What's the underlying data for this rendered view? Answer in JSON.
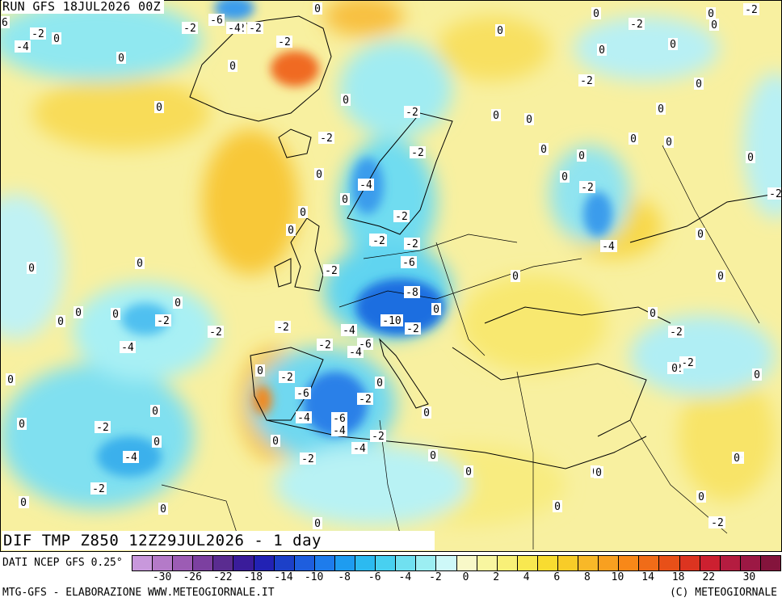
{
  "header": {
    "run": "RUN GFS 18JUL2026 00Z"
  },
  "map_title": "DIF TMP Z850 12Z29JUL2026 - 1 day",
  "footer": {
    "source": "DATI NCEP GFS 0.25°",
    "elaboration": "MTG-GFS - ELABORAZIONE WWW.METEOGIORNALE.IT",
    "credit": "(C) METEOGIORNALE"
  },
  "legend": {
    "colors": [
      "#c898dc",
      "#b47ac8",
      "#9c5cb4",
      "#7c40a0",
      "#5a2c90",
      "#3a1c9a",
      "#2222b4",
      "#1c40c8",
      "#1e5ede",
      "#1e7cec",
      "#1e9cf0",
      "#2cbaf0",
      "#48d0f0",
      "#70e0f0",
      "#9ceef2",
      "#cef8f8",
      "#f8f8c8",
      "#f8f6a0",
      "#f8f078",
      "#f8e850",
      "#f8dc30",
      "#f8cc28",
      "#f8b828",
      "#f8a020",
      "#f88818",
      "#f06c18",
      "#e85018",
      "#dc3420",
      "#cc2030",
      "#b41c40",
      "#9c1844",
      "#84143c"
    ],
    "ticks": [
      "-30",
      "-26",
      "-22",
      "-18",
      "-14",
      "-10",
      "-8",
      "-6",
      "-4",
      "-2",
      "0",
      "2",
      "4",
      "6",
      "8",
      "10",
      "14",
      "18",
      "22",
      "30"
    ]
  },
  "contour_labels": [
    {
      "text": "-6"
    },
    {
      "text": "-2"
    },
    {
      "text": "-2"
    },
    {
      "text": "-6"
    },
    {
      "text": "-4"
    },
    {
      "text": "-2"
    },
    {
      "text": "0"
    },
    {
      "text": "-2"
    },
    {
      "text": "0"
    },
    {
      "text": "0"
    },
    {
      "text": "-2"
    },
    {
      "text": "0"
    },
    {
      "text": "-4"
    },
    {
      "text": "0"
    },
    {
      "text": "-2"
    },
    {
      "text": "-2"
    },
    {
      "text": "0"
    },
    {
      "text": "-2"
    },
    {
      "text": "0"
    },
    {
      "text": "-2"
    },
    {
      "text": "0"
    },
    {
      "text": "-2"
    },
    {
      "text": "0"
    },
    {
      "text": "0"
    },
    {
      "text": "0"
    },
    {
      "text": "0"
    },
    {
      "text": "0"
    },
    {
      "text": "-2"
    },
    {
      "text": "0"
    },
    {
      "text": "-2"
    },
    {
      "text": "0"
    },
    {
      "text": "0"
    },
    {
      "text": "-2"
    },
    {
      "text": "0"
    },
    {
      "text": "0"
    },
    {
      "text": "-4"
    },
    {
      "text": "0"
    },
    {
      "text": "0"
    },
    {
      "text": "0"
    },
    {
      "text": "0"
    },
    {
      "text": "-2"
    },
    {
      "text": "0"
    },
    {
      "text": "0"
    },
    {
      "text": "-2"
    },
    {
      "text": "-4"
    },
    {
      "text": "-2"
    },
    {
      "text": "0"
    },
    {
      "text": "-2"
    },
    {
      "text": "-4"
    },
    {
      "text": "0"
    },
    {
      "text": "-6"
    },
    {
      "text": "0"
    },
    {
      "text": "0"
    },
    {
      "text": "-8"
    },
    {
      "text": "0"
    },
    {
      "text": "0"
    },
    {
      "text": "0"
    },
    {
      "text": "-2"
    },
    {
      "text": "0"
    },
    {
      "text": "0"
    },
    {
      "text": "-10"
    },
    {
      "text": "-2"
    },
    {
      "text": "-4"
    },
    {
      "text": "-2"
    },
    {
      "text": "-2"
    },
    {
      "text": "-6"
    },
    {
      "text": "-4"
    },
    {
      "text": "-4"
    },
    {
      "text": "-2"
    },
    {
      "text": "0"
    },
    {
      "text": "0"
    },
    {
      "text": "-2"
    },
    {
      "text": "0"
    },
    {
      "text": "0"
    },
    {
      "text": "0"
    },
    {
      "text": "-2"
    },
    {
      "text": "0"
    },
    {
      "text": "-6"
    },
    {
      "text": "-2"
    },
    {
      "text": "-4"
    },
    {
      "text": "0"
    },
    {
      "text": "0"
    },
    {
      "text": "-2"
    },
    {
      "text": "-4"
    },
    {
      "text": "-6"
    },
    {
      "text": "-4"
    },
    {
      "text": "0"
    },
    {
      "text": "-4"
    },
    {
      "text": "0"
    },
    {
      "text": "-2"
    },
    {
      "text": "-2"
    },
    {
      "text": "0"
    },
    {
      "text": "0"
    },
    {
      "text": "0"
    },
    {
      "text": "0"
    },
    {
      "text": "0"
    },
    {
      "text": "-2"
    },
    {
      "text": "0"
    },
    {
      "text": "0"
    },
    {
      "text": "0"
    },
    {
      "text": "-2"
    },
    {
      "text": "0"
    },
    {
      "text": "-4"
    },
    {
      "text": "-2"
    },
    {
      "text": "0"
    },
    {
      "text": "0"
    },
    {
      "text": "-2"
    },
    {
      "text": "-2"
    },
    {
      "text": "0"
    },
    {
      "text": "0"
    },
    {
      "text": "-2"
    },
    {
      "text": "0"
    },
    {
      "text": "0"
    },
    {
      "text": "0"
    },
    {
      "text": "0"
    },
    {
      "text": "0"
    },
    {
      "text": "0"
    },
    {
      "text": "0"
    },
    {
      "text": "0"
    },
    {
      "text": "-2"
    }
  ]
}
